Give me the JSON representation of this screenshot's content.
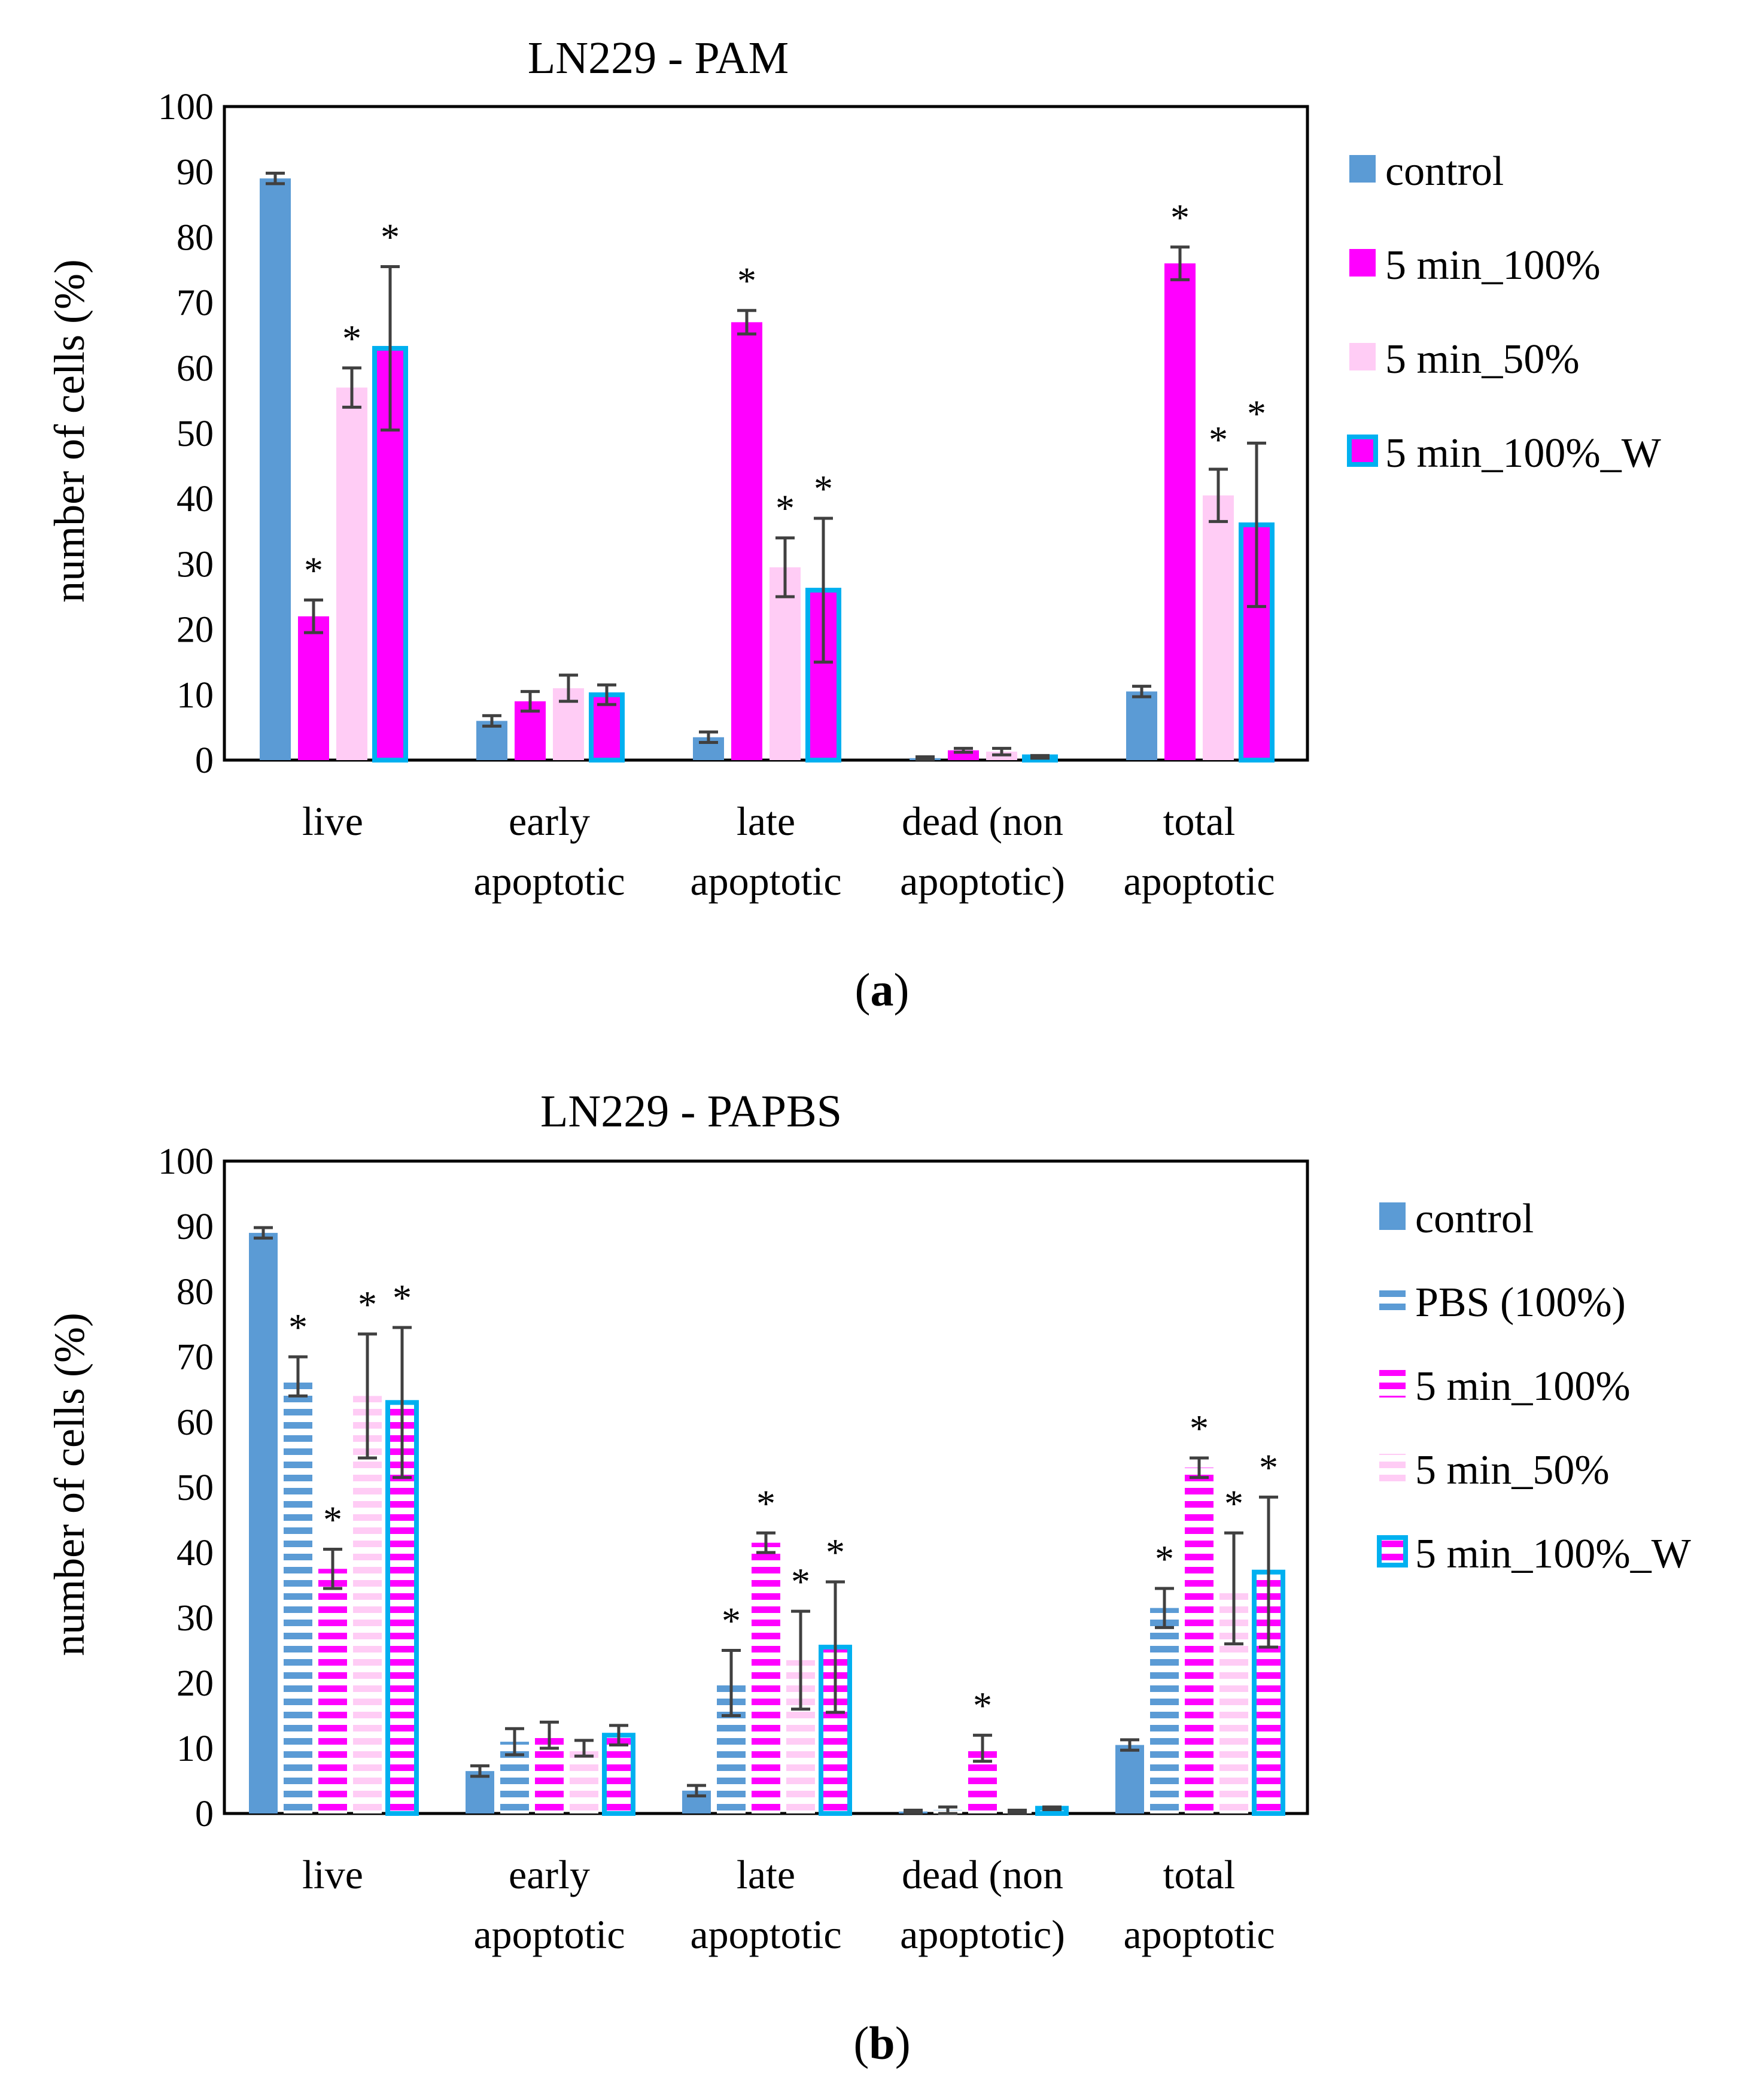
{
  "chart_data": [
    {
      "type": "bar",
      "title": "LN229 - PAM",
      "caption_letter": "a",
      "ylabel": "number of cells (%)",
      "xlabel": "",
      "ylim": [
        0,
        100
      ],
      "yticks": [
        0,
        10,
        20,
        30,
        40,
        50,
        60,
        70,
        80,
        90,
        100
      ],
      "categories": [
        [
          "live"
        ],
        [
          "early",
          "apoptotic"
        ],
        [
          "late",
          "apoptotic"
        ],
        [
          "dead (non",
          "apoptotic)"
        ],
        [
          "total",
          "apoptotic"
        ]
      ],
      "series": [
        {
          "name": "control",
          "style": "solid",
          "color": "#5B9BD5",
          "values": [
            89,
            6,
            3.5,
            0.3,
            10.5
          ],
          "errors": [
            0.8,
            0.8,
            0.8,
            0.2,
            0.8
          ],
          "stars": [
            false,
            false,
            false,
            false,
            false
          ]
        },
        {
          "name": "5 min_100%",
          "style": "solid",
          "color": "#FF00FF",
          "values": [
            22,
            9,
            67,
            1.5,
            76
          ],
          "errors": [
            2.5,
            1.5,
            1.8,
            0.3,
            2.5
          ],
          "stars": [
            true,
            false,
            true,
            false,
            true
          ]
        },
        {
          "name": "5 min_50%",
          "style": "solid",
          "color": "#FFCCF5",
          "values": [
            57,
            11,
            29.5,
            1.3,
            40.5
          ],
          "errors": [
            3,
            2,
            4.5,
            0.5,
            4
          ],
          "stars": [
            true,
            false,
            true,
            false,
            true
          ]
        },
        {
          "name": "5 min_100%_W",
          "style": "outlined",
          "color": "#FF00FF",
          "border": "#00B0F0",
          "values": [
            63,
            10,
            26,
            0.5,
            36
          ],
          "errors": [
            12.5,
            1.5,
            11,
            0.2,
            12.5
          ],
          "stars": [
            true,
            false,
            true,
            false,
            true
          ]
        }
      ]
    },
    {
      "type": "bar",
      "title": "LN229 - PAPBS",
      "caption_letter": "b",
      "ylabel": "number of cells (%)",
      "xlabel": "",
      "ylim": [
        0,
        100
      ],
      "yticks": [
        0,
        10,
        20,
        30,
        40,
        50,
        60,
        70,
        80,
        90,
        100
      ],
      "categories": [
        [
          "live"
        ],
        [
          "early",
          "apoptotic"
        ],
        [
          "late",
          "apoptotic"
        ],
        [
          "dead (non",
          "apoptotic)"
        ],
        [
          "total",
          "apoptotic"
        ]
      ],
      "series": [
        {
          "name": "control",
          "style": "solid",
          "color": "#5B9BD5",
          "values": [
            89,
            6.5,
            3.5,
            0.3,
            10.5
          ],
          "errors": [
            0.8,
            0.8,
            0.8,
            0.2,
            0.8
          ],
          "stars": [
            false,
            false,
            false,
            false,
            false
          ]
        },
        {
          "name": "PBS (100%)",
          "style": "striped",
          "color": "#5B9BD5",
          "values": [
            67,
            11,
            20,
            0.5,
            31.5
          ],
          "errors": [
            3,
            2,
            5,
            0.5,
            3
          ],
          "stars": [
            true,
            false,
            true,
            false,
            true
          ]
        },
        {
          "name": "5 min_100%",
          "style": "striped",
          "color": "#FF00FF",
          "values": [
            37.5,
            12,
            41.5,
            10,
            53
          ],
          "errors": [
            3,
            2,
            1.5,
            2,
            1.5
          ],
          "stars": [
            true,
            false,
            true,
            true,
            true
          ]
        },
        {
          "name": "5 min_50%",
          "style": "striped",
          "color": "#FFCCF5",
          "values": [
            64,
            10,
            23.5,
            0.3,
            34.5
          ],
          "errors": [
            9.5,
            1.2,
            7.5,
            0.2,
            8.5
          ],
          "stars": [
            true,
            false,
            true,
            false,
            true
          ]
        },
        {
          "name": "5 min_100%_W",
          "style": "outlined-striped",
          "color": "#FF00FF",
          "border": "#00B0F0",
          "values": [
            63,
            12,
            25.5,
            0.8,
            37
          ],
          "errors": [
            11.5,
            1.5,
            10,
            0.2,
            11.5
          ],
          "stars": [
            true,
            false,
            true,
            false,
            true
          ]
        }
      ]
    }
  ]
}
